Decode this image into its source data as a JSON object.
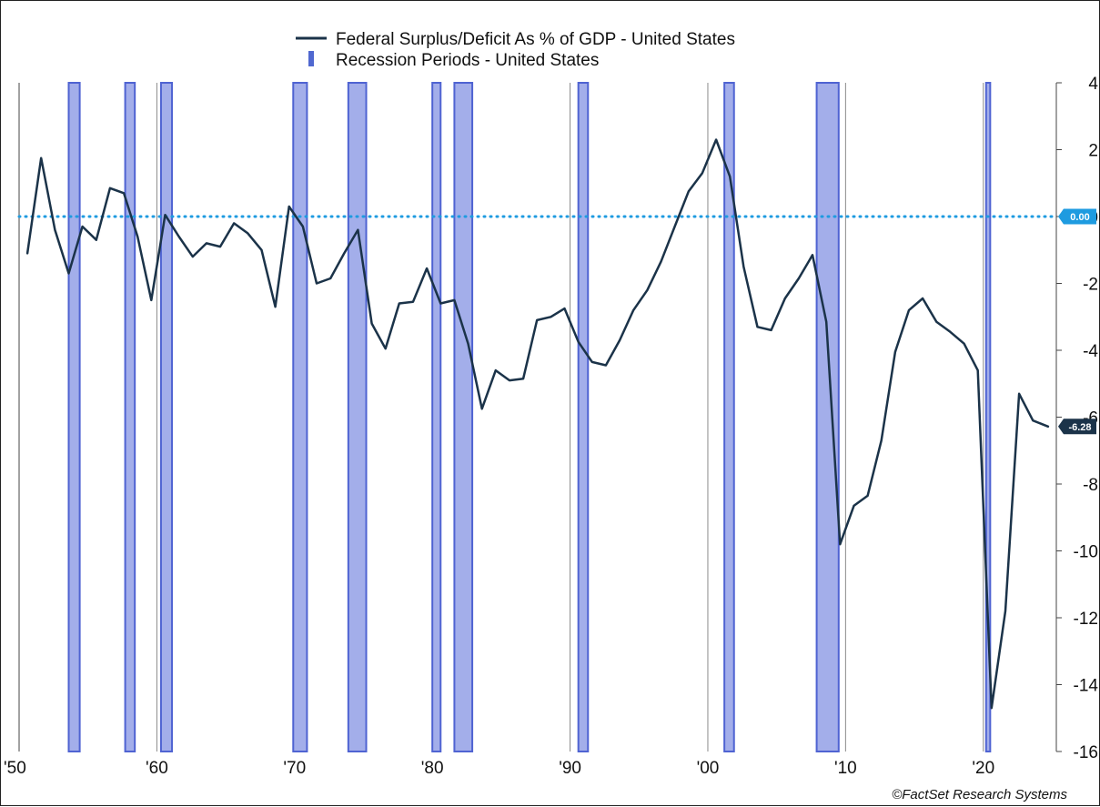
{
  "chart_data": {
    "type": "line",
    "legend": {
      "placement": "top-center",
      "entries": [
        {
          "label": "Federal Surplus/Deficit As % of GDP - United States",
          "symbol": "line",
          "color": "#1b3349"
        },
        {
          "label": "Recession Periods - United States",
          "symbol": "bar",
          "color": "#5068d0"
        }
      ]
    },
    "x_ticks": [
      {
        "value": 1950,
        "label": "'50"
      },
      {
        "value": 1960,
        "label": "'60"
      },
      {
        "value": 1970,
        "label": "'70"
      },
      {
        "value": 1980,
        "label": "'80"
      },
      {
        "value": 1990,
        "label": "'90"
      },
      {
        "value": 2000,
        "label": "'00"
      },
      {
        "value": 2010,
        "label": "'10"
      },
      {
        "value": 2020,
        "label": "'20"
      }
    ],
    "y_ticks": [
      "4",
      "2",
      "0",
      "-2",
      "-4",
      "-6",
      "-8",
      "-10",
      "-12",
      "-14",
      "-16"
    ],
    "xlim": [
      1950,
      2025.3
    ],
    "ylim": [
      -16,
      4
    ],
    "grid": "vertical",
    "y_axis_side": "right",
    "reference_line": {
      "value": 0,
      "label": "0.00",
      "color": "#1e9be0"
    },
    "last_value_label": {
      "value": -6.28,
      "label": "-6.28",
      "color": "#1b3349"
    },
    "recessions": [
      [
        1953.6,
        1954.4
      ],
      [
        1957.7,
        1958.4
      ],
      [
        1960.3,
        1961.1
      ],
      [
        1969.9,
        1970.9
      ],
      [
        1973.9,
        1975.2
      ],
      [
        1980.0,
        1980.6
      ],
      [
        1981.6,
        1982.9
      ],
      [
        1990.6,
        1991.3
      ],
      [
        2001.2,
        2001.9
      ],
      [
        2007.9,
        2009.5
      ],
      [
        2020.2,
        2020.5
      ]
    ],
    "series": [
      {
        "name": "Federal Surplus/Deficit As % of GDP - United States",
        "color": "#1b3349",
        "x": [
          1950.6,
          1951.6,
          1952.6,
          1953.6,
          1954.6,
          1955.6,
          1956.6,
          1957.6,
          1958.6,
          1959.6,
          1960.6,
          1961.6,
          1962.6,
          1963.6,
          1964.6,
          1965.6,
          1966.6,
          1967.6,
          1968.6,
          1969.6,
          1970.6,
          1971.6,
          1972.6,
          1973.6,
          1974.6,
          1975.6,
          1976.6,
          1977.6,
          1978.6,
          1979.6,
          1980.6,
          1981.6,
          1982.6,
          1983.6,
          1984.6,
          1985.6,
          1986.6,
          1987.6,
          1988.6,
          1989.6,
          1990.6,
          1991.6,
          1992.6,
          1993.6,
          1994.6,
          1995.6,
          1996.6,
          1997.6,
          1998.6,
          1999.6,
          2000.6,
          2001.6,
          2002.6,
          2003.6,
          2004.6,
          2005.6,
          2006.6,
          2007.6,
          2008.6,
          2009.6,
          2010.6,
          2011.6,
          2012.6,
          2013.6,
          2014.6,
          2015.6,
          2016.6,
          2017.6,
          2018.6,
          2019.6,
          2020.6,
          2021.6,
          2022.6,
          2023.6,
          2024.7
        ],
        "values": [
          -1.1,
          1.75,
          -0.4,
          -1.7,
          -0.3,
          -0.7,
          0.85,
          0.7,
          -0.6,
          -2.5,
          0.05,
          -0.6,
          -1.2,
          -0.8,
          -0.9,
          -0.2,
          -0.5,
          -1.0,
          -2.7,
          0.3,
          -0.3,
          -2.0,
          -1.85,
          -1.1,
          -0.4,
          -3.2,
          -3.95,
          -2.6,
          -2.55,
          -1.55,
          -2.6,
          -2.5,
          -3.8,
          -5.75,
          -4.6,
          -4.9,
          -4.85,
          -3.1,
          -3.0,
          -2.75,
          -3.75,
          -4.35,
          -4.45,
          -3.7,
          -2.8,
          -2.2,
          -1.35,
          -0.3,
          0.75,
          1.3,
          2.3,
          1.2,
          -1.5,
          -3.3,
          -3.4,
          -2.45,
          -1.85,
          -1.15,
          -3.15,
          -9.8,
          -8.65,
          -8.35,
          -6.7,
          -4.05,
          -2.8,
          -2.45,
          -3.15,
          -3.45,
          -3.8,
          -4.6,
          -14.7,
          -11.8,
          -5.3,
          -6.1,
          -6.28
        ]
      }
    ],
    "credit": "©FactSet Research Systems"
  }
}
